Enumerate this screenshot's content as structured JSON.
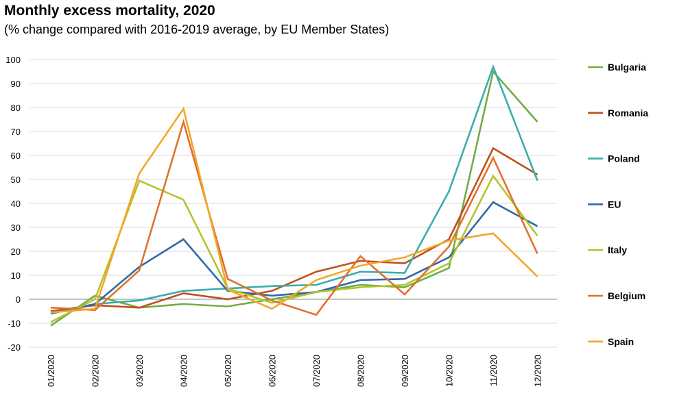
{
  "title": "Monthly excess mortality, 2020",
  "subtitle": "(% change compared with 2016-2019 average, by EU Member States)",
  "chart_data": {
    "type": "line",
    "categories": [
      "01/2020",
      "02/2020",
      "03/2020",
      "04/2020",
      "05/2020",
      "06/2020",
      "07/2020",
      "08/2020",
      "09/2020",
      "10/2020",
      "11/2020",
      "12/2020"
    ],
    "ylim": [
      -20,
      100
    ],
    "yticks": [
      -20,
      -10,
      0,
      10,
      20,
      30,
      40,
      50,
      60,
      70,
      80,
      90,
      100
    ],
    "grid": true,
    "legend_position": "right",
    "series": [
      {
        "name": "Bulgaria",
        "color": "#70ad47",
        "values": [
          -11,
          1.5,
          -3.5,
          -2,
          -3,
          0,
          3,
          6,
          5,
          13,
          95,
          74
        ]
      },
      {
        "name": "Romania",
        "color": "#c0501c",
        "values": [
          -5,
          -2.5,
          -3.5,
          2.5,
          0,
          3.5,
          11.5,
          16,
          15,
          25,
          63,
          52
        ]
      },
      {
        "name": "Poland",
        "color": "#3aadad",
        "values": [
          -6,
          -2,
          -0.5,
          3.5,
          4.5,
          5.5,
          6,
          11.5,
          11,
          45,
          97,
          49.5
        ]
      },
      {
        "name": "EU",
        "color": "#2e6aa8",
        "values": [
          -6,
          -2,
          13.5,
          25,
          3.5,
          1.5,
          3,
          8,
          8.5,
          17.5,
          40.5,
          30.5
        ]
      },
      {
        "name": "Italy",
        "color": "#b5c42b",
        "values": [
          -9.5,
          0,
          49.5,
          41.5,
          4.5,
          -1.5,
          3,
          5,
          6,
          15,
          51.5,
          26.5
        ]
      },
      {
        "name": "Belgium",
        "color": "#e0712c",
        "values": [
          -3.5,
          -4.5,
          12,
          74,
          8.5,
          -0.5,
          -6.5,
          18,
          2,
          22,
          59,
          19
        ]
      },
      {
        "name": "Spain",
        "color": "#f3a62a",
        "values": [
          -5.5,
          -4,
          52.5,
          79.5,
          4,
          -4,
          8,
          14,
          17.5,
          24.5,
          27.5,
          9.5
        ]
      }
    ]
  }
}
